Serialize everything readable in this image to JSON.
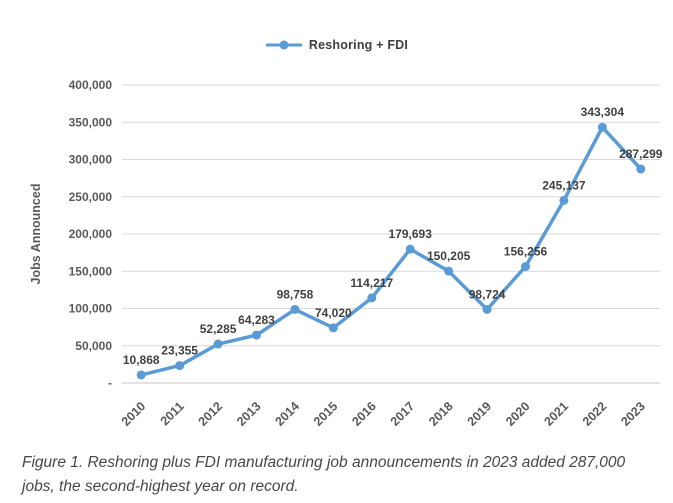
{
  "legend": {
    "label": "Reshoring + FDI"
  },
  "chart_data": {
    "type": "line",
    "title": "",
    "xlabel": "",
    "ylabel": "Jobs Announced",
    "categories": [
      "2010",
      "2011",
      "2012",
      "2013",
      "2014",
      "2015",
      "2016",
      "2017",
      "2018",
      "2019",
      "2020",
      "2021",
      "2022",
      "2023"
    ],
    "series": [
      {
        "name": "Reshoring + FDI",
        "color": "#5B9BD5",
        "values": [
          10868,
          23355,
          52285,
          64283,
          98758,
          74020,
          114217,
          179693,
          150205,
          98724,
          156256,
          245137,
          343304,
          287299
        ],
        "point_labels": [
          "10,868",
          "23,355",
          "52,285",
          "64,283",
          "98,758",
          "74,020",
          "114,217",
          "179,693",
          "150,205",
          "98,724",
          "156,256",
          "245,137",
          "343,304",
          "287,299"
        ]
      }
    ],
    "ylim": [
      0,
      400000
    ],
    "ytick_step": 50000,
    "ytick_labels": [
      "-",
      "50,000",
      "100,000",
      "150,000",
      "200,000",
      "250,000",
      "300,000",
      "350,000",
      "400,000"
    ],
    "grid": true,
    "legend_position": "top"
  },
  "caption": "Figure 1. Reshoring plus FDI manufacturing job announcements in 2023 added 287,000 jobs, the second-highest year on record.",
  "colors": {
    "line": "#5B9BD5",
    "gridline": "#D9D9D9",
    "axis_line": "#C6C6C6",
    "tick_text": "#595959",
    "data_label_text": "#404040",
    "legend_text": "#404040",
    "caption_text": "#474747"
  }
}
